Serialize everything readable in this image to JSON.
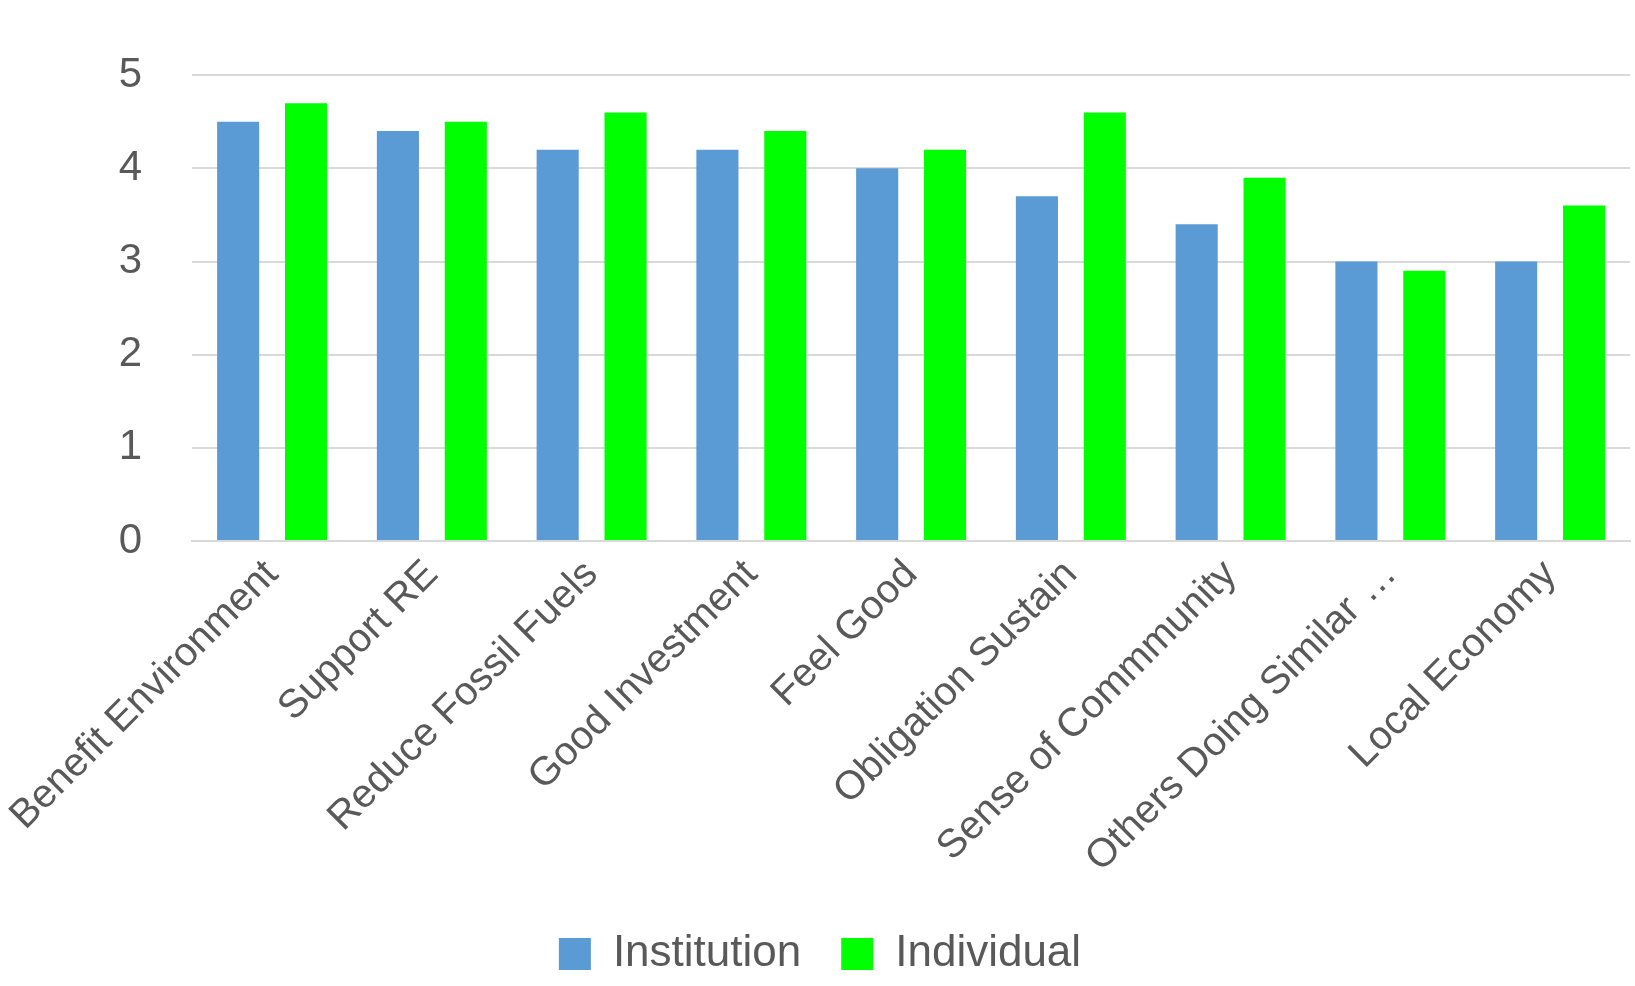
{
  "chart_data": {
    "type": "bar",
    "categories": [
      "Benefit Environment",
      "Support RE",
      "Reduce Fossil Fuels",
      "Good Investment",
      "Feel Good",
      "Obligation Sustain",
      "Sense of Commmunity",
      "Others Doing Similar …",
      "Local Economy"
    ],
    "series": [
      {
        "name": "Institution",
        "color": "#5b9bd5",
        "values": [
          4.5,
          4.4,
          4.2,
          4.2,
          4.0,
          3.7,
          3.4,
          3.0,
          3.0
        ]
      },
      {
        "name": "Individual",
        "color": "#00ff00",
        "values": [
          4.7,
          4.5,
          4.6,
          4.4,
          4.2,
          4.6,
          3.9,
          2.9,
          3.6
        ]
      }
    ],
    "ylim": [
      0,
      5
    ],
    "yticks": [
      0,
      1,
      2,
      3,
      4,
      5
    ],
    "grid": "y",
    "legend": "bottom"
  }
}
